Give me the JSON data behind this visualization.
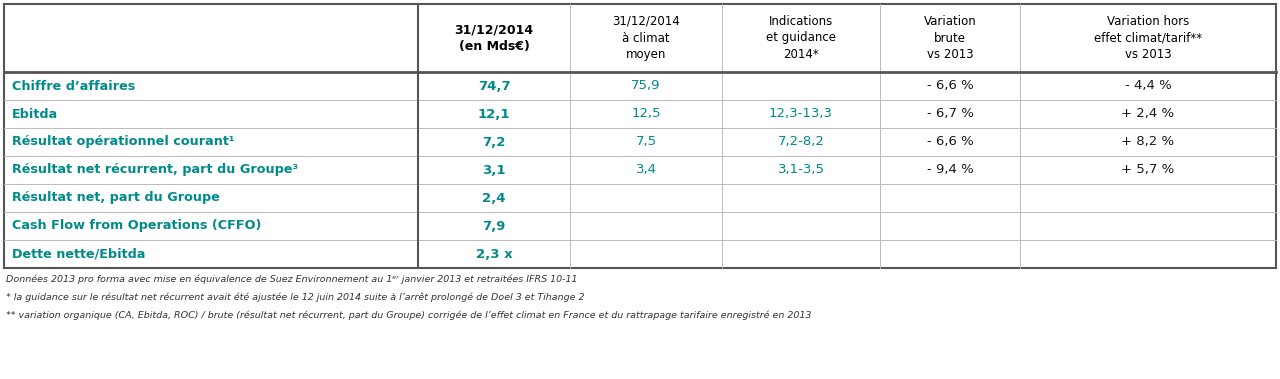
{
  "col_headers": [
    "31/12/2014\n(en Mds€)",
    "31/12/2014\nà climat\nmoyen",
    "Indications\net guidance\n2014*",
    "Variation\nbrute\nvs 2013",
    "Variation hors\neffet climat/tarif**\nvs 2013"
  ],
  "row_labels": [
    "Chiffre d’affaires",
    "Ebitda",
    "Résultat opérationnel courant¹",
    "Résultat net récurrent, part du Groupe³",
    "Résultat net, part du Groupe",
    "Cash Flow from Operations (CFFO)",
    "Dette nette/Ebitda"
  ],
  "col1_vals": [
    "74,7",
    "12,1",
    "7,2",
    "3,1",
    "2,4",
    "7,9",
    "2,3 x"
  ],
  "col2_vals": [
    "75,9",
    "12,5",
    "7,5",
    "3,4",
    "",
    "",
    ""
  ],
  "col3_vals": [
    "",
    "12,3-13,3",
    "7,2-8,2",
    "3,1-3,5",
    "",
    "",
    ""
  ],
  "col4_vals": [
    "- 6,6 %",
    "- 6,7 %",
    "- 6,6 %",
    "- 9,4 %",
    "",
    "",
    ""
  ],
  "col5_vals": [
    "- 4,4 %",
    "+ 2,4 %",
    "+ 8,2 %",
    "+ 5,7 %",
    "",
    "",
    ""
  ],
  "teal_color": "#008B8B",
  "border_color": "#555555",
  "light_line": "#bbbbbb",
  "footnote1": "Données 2013 pro forma avec mise en équivalence de Suez Environnement au 1ᵉʳ janvier 2013 et retraitées IFRS 10-11",
  "footnote2": "* la guidance sur le résultat net récurrent avait été ajustée le 12 juin 2014 suite à l’arrêt prolongé de Doel 3 et Tihange 2",
  "footnote3": "** variation organique (CA, Ebitda, ROC) / brute (résultat net récurrent, part du Groupe) corrigée de l’effet climat en France et du rattrapage tarifaire enregistré en 2013",
  "figsize": [
    12.8,
    3.79
  ],
  "dpi": 100
}
